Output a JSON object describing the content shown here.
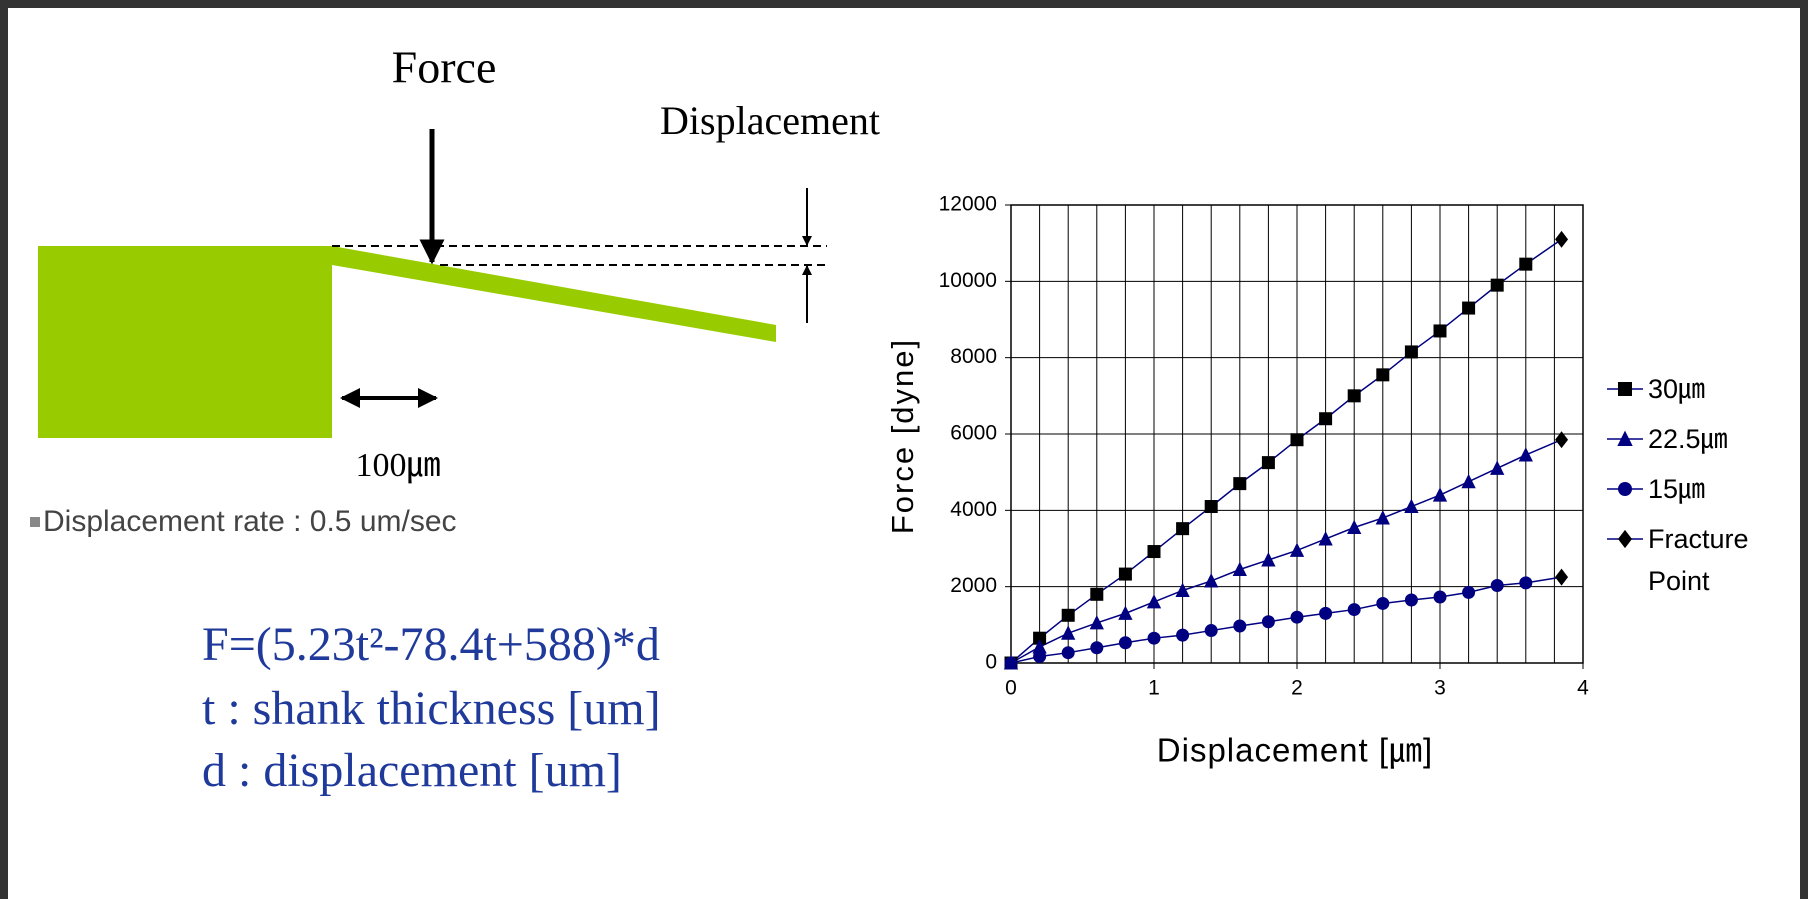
{
  "diagram": {
    "force_label": "Force",
    "displacement_label": "Displacement",
    "length_label": "100㎛",
    "bullet": "Displacement rate : 0.5 um/sec",
    "formula": [
      "F=(5.23t²-78.4t+588)*d",
      "t : shank thickness [um]",
      "d : displacement [um]"
    ]
  },
  "chart_data": {
    "type": "line",
    "x_label": "Displacement [㎛]",
    "y_label": "Force [dyne]",
    "x": [
      0,
      0.2,
      0.4,
      0.6,
      0.8,
      1.0,
      1.2,
      1.4,
      1.6,
      1.8,
      2.0,
      2.2,
      2.4,
      2.6,
      2.8,
      3.0,
      3.2,
      3.4,
      3.6
    ],
    "series": [
      {
        "name": "30㎛",
        "color": "#000000",
        "marker": "square",
        "values": [
          0,
          650,
          1250,
          1800,
          2330,
          2920,
          3520,
          4100,
          4700,
          5250,
          5850,
          6400,
          7000,
          7550,
          8150,
          8700,
          9300,
          9900,
          10450
        ]
      },
      {
        "name": "22.5㎛",
        "color": "#000080",
        "marker": "triangle",
        "values": [
          0,
          420,
          780,
          1050,
          1300,
          1600,
          1900,
          2150,
          2450,
          2700,
          2950,
          3250,
          3550,
          3800,
          4100,
          4400,
          4750,
          5100,
          5450
        ]
      },
      {
        "name": "15㎛",
        "color": "#000080",
        "marker": "circle",
        "values": [
          0,
          170,
          270,
          400,
          530,
          650,
          730,
          850,
          970,
          1080,
          1200,
          1300,
          1400,
          1560,
          1650,
          1730,
          1850,
          2030,
          2100
        ]
      },
      {
        "name": "Fracture Point",
        "color": "#000000",
        "marker": "diamond",
        "x": [
          3.85,
          3.85,
          3.85
        ],
        "values": [
          11100,
          5850,
          2250
        ]
      }
    ],
    "line_color": "#000080",
    "xlim": [
      0,
      4
    ],
    "xticks": [
      0,
      1,
      2,
      3,
      4
    ],
    "x_minor_grid": [
      0.2,
      0.4,
      0.6,
      0.8,
      1.2,
      1.4,
      1.6,
      1.8,
      2.2,
      2.4,
      2.6,
      2.8,
      3.2,
      3.4,
      3.6,
      3.8
    ],
    "ylim": [
      0,
      12000
    ],
    "yticks": [
      0,
      2000,
      4000,
      6000,
      8000,
      10000,
      12000
    ],
    "grid": true
  }
}
